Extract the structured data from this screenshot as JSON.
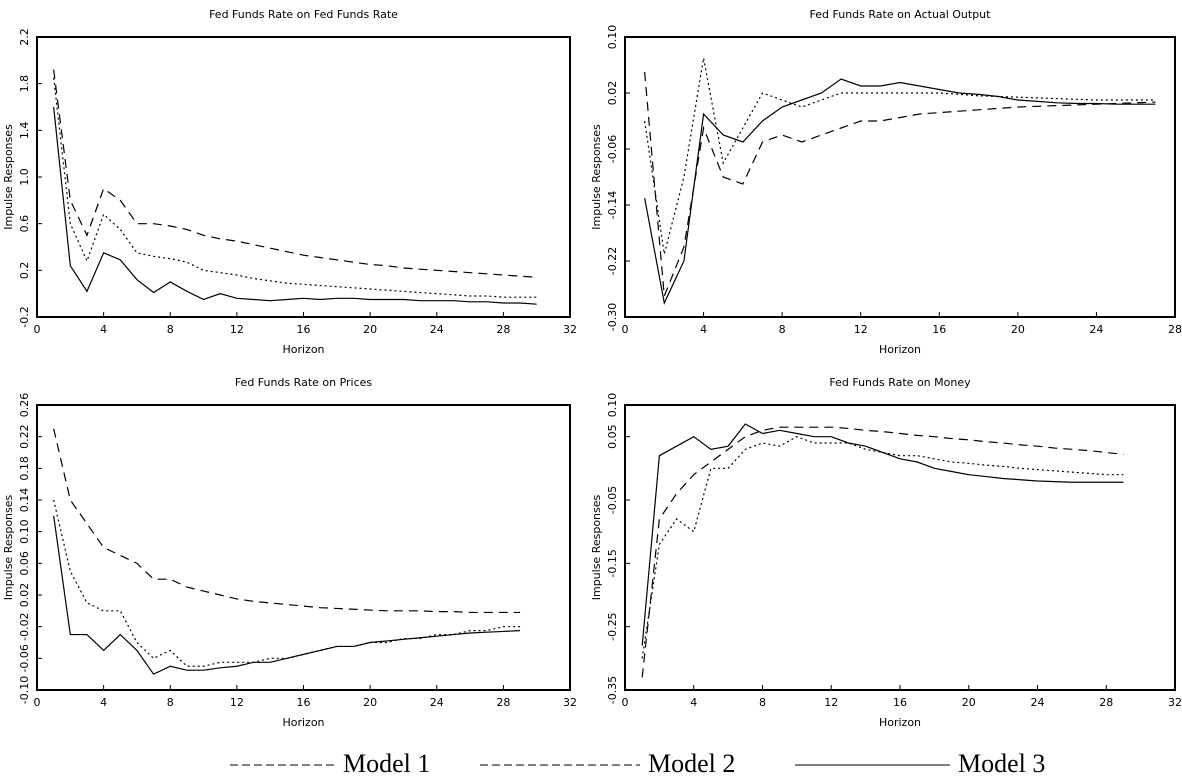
{
  "chart_data": [
    {
      "type": "line",
      "title": "Fed Funds Rate on Fed Funds Rate",
      "x_label": "Horizon",
      "y_label": "Impulse Responses",
      "x": [
        1,
        2,
        3,
        4,
        5,
        6,
        7,
        8,
        9,
        10,
        11,
        12,
        13,
        14,
        15,
        16,
        17,
        18,
        19,
        20,
        21,
        22,
        23,
        24,
        25,
        26,
        27,
        28,
        29,
        30
      ],
      "xlim": [
        0,
        32
      ],
      "xticks": [
        0,
        4,
        8,
        12,
        16,
        20,
        24,
        28,
        32
      ],
      "ylim": [
        -0.2,
        2.2
      ],
      "yticks": [
        -0.2,
        0.2,
        0.6,
        {
          "value": 1,
          "label": "1.0"
        },
        1.4,
        1.8,
        2.2
      ],
      "series": [
        {
          "color": "#000000",
          "dash": "2,3",
          "values": [
            1.85,
            0.6,
            0.28,
            0.68,
            0.55,
            0.35,
            0.32,
            0.3,
            0.27,
            0.2,
            0.18,
            0.16,
            0.13,
            0.11,
            0.09,
            0.08,
            0.07,
            0.06,
            0.05,
            0.04,
            0.03,
            0.02,
            0.01,
            0.0,
            -0.01,
            -0.02,
            -0.02,
            -0.03,
            -0.03,
            -0.03
          ]
        },
        {
          "color": "#000000",
          "dash": "9,6",
          "values": [
            1.92,
            0.8,
            0.5,
            0.9,
            0.8,
            0.6,
            0.6,
            0.58,
            0.55,
            0.5,
            0.47,
            0.45,
            0.42,
            0.39,
            0.36,
            0.33,
            0.31,
            0.29,
            0.27,
            0.25,
            0.24,
            0.22,
            0.21,
            0.2,
            0.19,
            0.18,
            0.17,
            0.16,
            0.15,
            0.14
          ]
        },
        {
          "color": "#000000",
          "dash": "none",
          "values": [
            1.6,
            0.24,
            0.02,
            0.35,
            0.29,
            0.12,
            0.01,
            0.1,
            0.02,
            -0.05,
            0.0,
            -0.04,
            -0.05,
            -0.06,
            -0.05,
            -0.04,
            -0.05,
            -0.04,
            -0.04,
            -0.05,
            -0.05,
            -0.05,
            -0.06,
            -0.06,
            -0.06,
            -0.07,
            -0.07,
            -0.08,
            -0.08,
            -0.09
          ]
        }
      ]
    },
    {
      "type": "line",
      "title": "Fed Funds Rate on Actual Output",
      "x_label": "Horizon",
      "y_label": "Impulse Responses",
      "x": [
        1,
        2,
        3,
        4,
        5,
        6,
        7,
        8,
        9,
        10,
        11,
        12,
        13,
        14,
        15,
        16,
        17,
        18,
        19,
        20,
        21,
        22,
        23,
        24,
        25,
        26,
        27
      ],
      "xlim": [
        0,
        28
      ],
      "xticks": [
        0,
        4,
        8,
        12,
        16,
        20,
        24,
        28
      ],
      "ylim": [
        -0.3,
        0.1
      ],
      "yticks": [
        {
          "value": -0.3,
          "label": "-0.30"
        },
        -0.22,
        -0.14,
        -0.06,
        0.02,
        {
          "value": 0.1,
          "label": "0.10"
        }
      ],
      "series": [
        {
          "color": "#000000",
          "dash": "2,3",
          "values": [
            -0.02,
            -0.21,
            -0.1,
            0.07,
            -0.08,
            -0.03,
            0.02,
            0.01,
            0.0,
            0.01,
            0.02,
            0.02,
            0.02,
            0.02,
            0.02,
            0.02,
            0.018,
            0.016,
            0.015,
            0.014,
            0.013,
            0.012,
            0.011,
            0.01,
            0.01,
            0.01,
            0.01
          ]
        },
        {
          "color": "#000000",
          "dash": "9,6",
          "values": [
            0.05,
            -0.27,
            -0.2,
            -0.03,
            -0.1,
            -0.11,
            -0.05,
            -0.04,
            -0.05,
            -0.04,
            -0.03,
            -0.02,
            -0.02,
            -0.015,
            -0.01,
            -0.008,
            -0.006,
            -0.004,
            -0.002,
            0.0,
            0.001,
            0.002,
            0.003,
            0.004,
            0.005,
            0.006,
            0.007
          ]
        },
        {
          "color": "#000000",
          "dash": "none",
          "values": [
            -0.13,
            -0.28,
            -0.22,
            -0.01,
            -0.04,
            -0.05,
            -0.02,
            0.0,
            0.01,
            0.02,
            0.04,
            0.03,
            0.03,
            0.035,
            0.03,
            0.025,
            0.02,
            0.018,
            0.015,
            0.01,
            0.008,
            0.006,
            0.005,
            0.005,
            0.004,
            0.004,
            0.004
          ]
        }
      ]
    },
    {
      "type": "line",
      "title": "Fed Funds Rate on Prices",
      "x_label": "Horizon",
      "y_label": "Impulse Responses",
      "x": [
        1,
        2,
        3,
        4,
        5,
        6,
        7,
        8,
        9,
        10,
        11,
        12,
        13,
        14,
        15,
        16,
        17,
        18,
        19,
        20,
        21,
        22,
        23,
        24,
        25,
        26,
        27,
        28,
        29
      ],
      "xlim": [
        0,
        32
      ],
      "xticks": [
        0,
        4,
        8,
        12,
        16,
        20,
        24,
        28,
        32
      ],
      "ylim": [
        -0.1,
        0.26
      ],
      "yticks": [
        {
          "value": -0.1,
          "label": "-0.10"
        },
        -0.06,
        -0.02,
        0.02,
        0.06,
        {
          "value": 0.1,
          "label": "0.10"
        },
        0.14,
        0.18,
        0.22,
        0.26
      ],
      "series": [
        {
          "color": "#000000",
          "dash": "2,3",
          "values": [
            0.14,
            0.05,
            0.01,
            0.0,
            0.0,
            -0.04,
            -0.06,
            -0.05,
            -0.07,
            -0.07,
            -0.065,
            -0.065,
            -0.065,
            -0.06,
            -0.06,
            -0.055,
            -0.05,
            -0.045,
            -0.045,
            -0.04,
            -0.04,
            -0.035,
            -0.035,
            -0.03,
            -0.03,
            -0.025,
            -0.025,
            -0.02,
            -0.02
          ]
        },
        {
          "color": "#000000",
          "dash": "9,6",
          "values": [
            0.23,
            0.14,
            0.11,
            0.08,
            0.07,
            0.06,
            0.04,
            0.04,
            0.03,
            0.025,
            0.02,
            0.015,
            0.012,
            0.01,
            0.008,
            0.006,
            0.004,
            0.003,
            0.002,
            0.001,
            0.0,
            0.0,
            0.0,
            -0.001,
            -0.001,
            -0.002,
            -0.002,
            -0.002,
            -0.002
          ]
        },
        {
          "color": "#000000",
          "dash": "none",
          "values": [
            0.12,
            -0.03,
            -0.03,
            -0.05,
            -0.03,
            -0.05,
            -0.08,
            -0.07,
            -0.075,
            -0.075,
            -0.072,
            -0.07,
            -0.065,
            -0.065,
            -0.06,
            -0.055,
            -0.05,
            -0.045,
            -0.045,
            -0.04,
            -0.038,
            -0.036,
            -0.034,
            -0.032,
            -0.03,
            -0.028,
            -0.027,
            -0.026,
            -0.025
          ]
        }
      ]
    },
    {
      "type": "line",
      "title": "Fed Funds Rate on Money",
      "x_label": "Horizon",
      "y_label": "Impulse Responses",
      "x": [
        1,
        2,
        3,
        4,
        5,
        6,
        7,
        8,
        9,
        10,
        11,
        12,
        13,
        14,
        15,
        16,
        17,
        18,
        19,
        20,
        21,
        22,
        23,
        24,
        25,
        26,
        27,
        28,
        29
      ],
      "xlim": [
        0,
        32
      ],
      "xticks": [
        0,
        4,
        8,
        12,
        16,
        20,
        24,
        28,
        32
      ],
      "ylim": [
        -0.35,
        0.1
      ],
      "yticks": [
        -0.35,
        -0.25,
        -0.15,
        -0.05,
        0.05,
        {
          "value": 0.1,
          "label": "0.10"
        }
      ],
      "series": [
        {
          "color": "#000000",
          "dash": "2,3",
          "values": [
            -0.3,
            -0.12,
            -0.08,
            -0.1,
            0.0,
            0.0,
            0.03,
            0.04,
            0.035,
            0.05,
            0.04,
            0.04,
            0.04,
            0.03,
            0.025,
            0.02,
            0.02,
            0.015,
            0.01,
            0.008,
            0.005,
            0.003,
            0.0,
            -0.002,
            -0.004,
            -0.006,
            -0.008,
            -0.01,
            -0.01
          ]
        },
        {
          "color": "#000000",
          "dash": "9,6",
          "values": [
            -0.33,
            -0.08,
            -0.04,
            -0.01,
            0.01,
            0.03,
            0.05,
            0.06,
            0.065,
            0.065,
            0.065,
            0.065,
            0.063,
            0.06,
            0.058,
            0.055,
            0.052,
            0.05,
            0.047,
            0.045,
            0.042,
            0.04,
            0.037,
            0.035,
            0.032,
            0.03,
            0.028,
            0.025,
            0.022
          ]
        },
        {
          "color": "#000000",
          "dash": "none",
          "values": [
            -0.28,
            0.02,
            0.035,
            0.05,
            0.03,
            0.035,
            0.07,
            0.055,
            0.06,
            0.055,
            0.05,
            0.05,
            0.04,
            0.035,
            0.025,
            0.015,
            0.01,
            0.0,
            -0.005,
            -0.01,
            -0.013,
            -0.016,
            -0.018,
            -0.02,
            -0.021,
            -0.022,
            -0.022,
            -0.022,
            -0.022
          ]
        }
      ]
    }
  ],
  "legend": {
    "entries": [
      "Model 1",
      "Model 2",
      "Model 3"
    ]
  }
}
